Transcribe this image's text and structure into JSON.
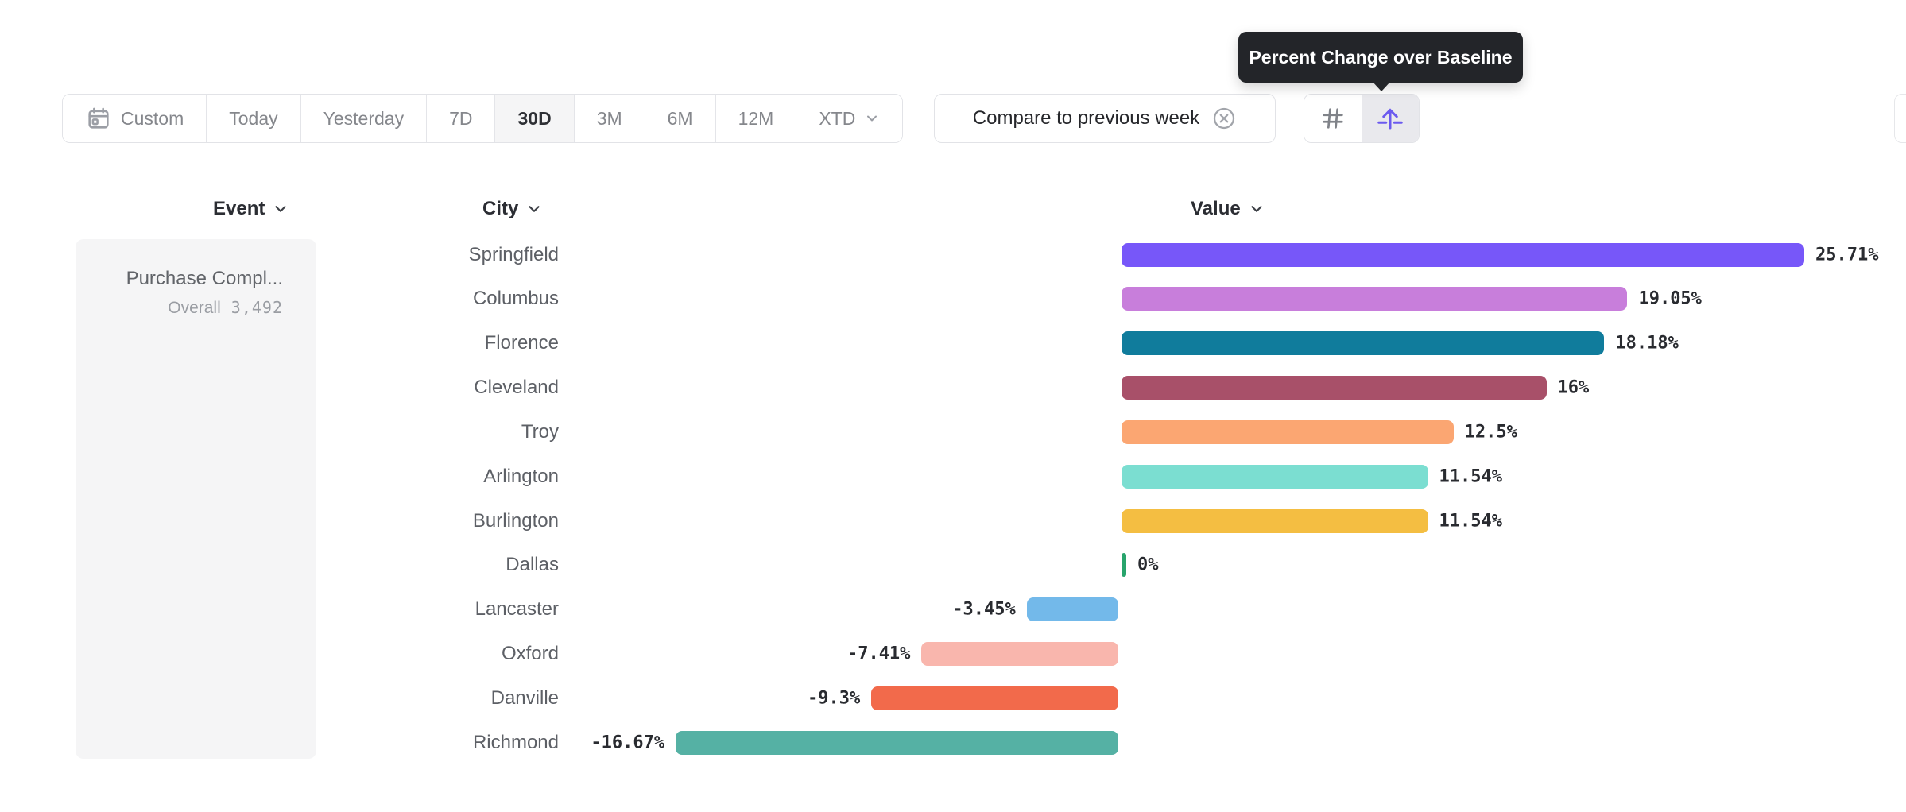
{
  "tooltip": {
    "text": "Percent Change over Baseline"
  },
  "toolbar": {
    "date_ranges": [
      {
        "label": "Custom",
        "selected": false,
        "calendar_icon": true,
        "chevron": false
      },
      {
        "label": "Today",
        "selected": false,
        "calendar_icon": false,
        "chevron": false
      },
      {
        "label": "Yesterday",
        "selected": false,
        "calendar_icon": false,
        "chevron": false
      },
      {
        "label": "7D",
        "selected": false,
        "calendar_icon": false,
        "chevron": false
      },
      {
        "label": "30D",
        "selected": true,
        "calendar_icon": false,
        "chevron": false
      },
      {
        "label": "3M",
        "selected": false,
        "calendar_icon": false,
        "chevron": false
      },
      {
        "label": "6M",
        "selected": false,
        "calendar_icon": false,
        "chevron": false
      },
      {
        "label": "12M",
        "selected": false,
        "calendar_icon": false,
        "chevron": false
      },
      {
        "label": "XTD",
        "selected": false,
        "calendar_icon": false,
        "chevron": true
      }
    ],
    "compare_chip": {
      "label": "Compare to previous week",
      "close_icon": "x-circle-icon"
    },
    "view_toggle": [
      {
        "name": "grid-view",
        "icon": "hash-icon",
        "selected": false
      },
      {
        "name": "percent-change-view",
        "icon": "arrow-up-from-baseline-icon",
        "selected": true
      }
    ]
  },
  "columns": {
    "event": "Event",
    "city": "City",
    "value": "Value"
  },
  "event_panel": {
    "event_name": "Purchase Compl...",
    "overall_label": "Overall",
    "overall_value": "3,492"
  },
  "chart_data": {
    "type": "bar",
    "orientation": "horizontal",
    "title": "Percent Change over Baseline",
    "unit": "%",
    "baseline": 0,
    "xlim": [
      -16.67,
      25.71
    ],
    "categories": [
      "Springfield",
      "Columbus",
      "Florence",
      "Cleveland",
      "Troy",
      "Arlington",
      "Burlington",
      "Dallas",
      "Lancaster",
      "Oxford",
      "Danville",
      "Richmond"
    ],
    "values": [
      25.71,
      19.05,
      18.18,
      16,
      12.5,
      11.54,
      11.54,
      0,
      -3.45,
      -7.41,
      -9.3,
      -16.67
    ],
    "labels": [
      "25.71%",
      "19.05%",
      "18.18%",
      "16%",
      "12.5%",
      "11.54%",
      "11.54%",
      "0%",
      "-3.45%",
      "-7.41%",
      "-9.3%",
      "-16.67%"
    ],
    "colors": [
      "#7757F9",
      "#C87EDB",
      "#107C9C",
      "#A85069",
      "#FBA672",
      "#7BDED1",
      "#F4BE42",
      "#28A46C",
      "#73B9EA",
      "#F9B6AD",
      "#F26A4B",
      "#55B1A4"
    ]
  },
  "ui_colors": {
    "accent_purple": "#6B5AEF",
    "zero_tick_green": "#28A46C",
    "tooltip_bg": "#232529",
    "selected_segment_bg": "#f5f5f6",
    "muted_text": "#85878c"
  }
}
